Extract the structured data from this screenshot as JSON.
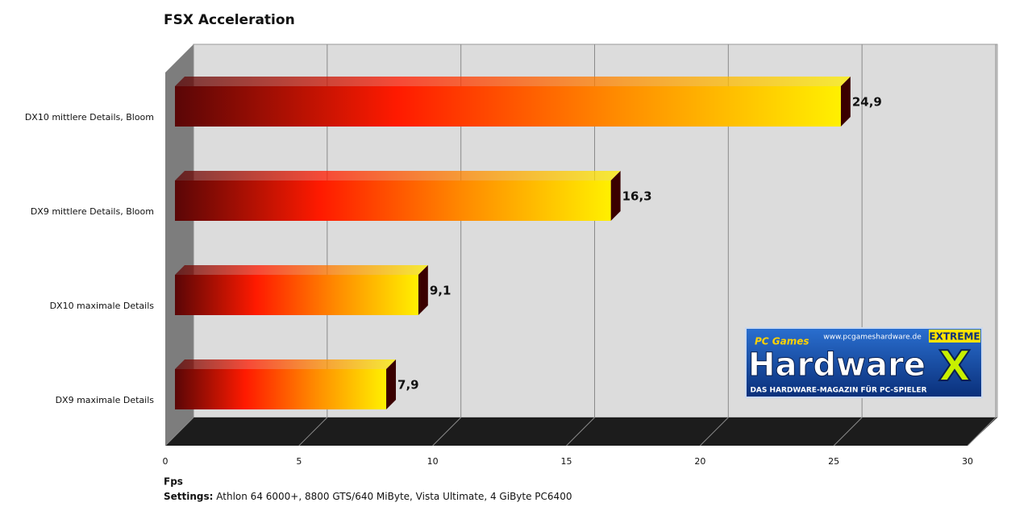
{
  "chart_data": {
    "type": "bar3d",
    "orientation": "horizontal",
    "title": "FSX Acceleration",
    "categories": [
      "DX10 mittlere Details, Bloom",
      "DX9 mittlere Details, Bloom",
      "DX10 maximale Details",
      "DX9 maximale Details"
    ],
    "values": [
      24.9,
      16.3,
      9.1,
      7.9
    ],
    "value_labels": [
      "24,9",
      "16,3",
      "9,1",
      "7,9"
    ],
    "colors": [
      "#5a0606",
      "#ff1a00",
      "#ff8c00",
      "#fff000"
    ],
    "xlim": [
      0,
      30
    ],
    "xticks": [
      0,
      5,
      10,
      15,
      20,
      25,
      30
    ],
    "grid": true,
    "x_label": "Fps",
    "note_label": "Settings:",
    "note": "Athlon 64 6000+, 8800 GTS/640 MiByte, Vista Ultimate, 4 GiByte PC6400"
  },
  "logo": {
    "url": "www.pcgameshardware.de",
    "brand": "PC Games",
    "name": "Hardware",
    "badge": "EXTREME",
    "mark": "X",
    "tagline": "DAS HARDWARE-MAGAZIN FÜR PC-SPIELER"
  }
}
